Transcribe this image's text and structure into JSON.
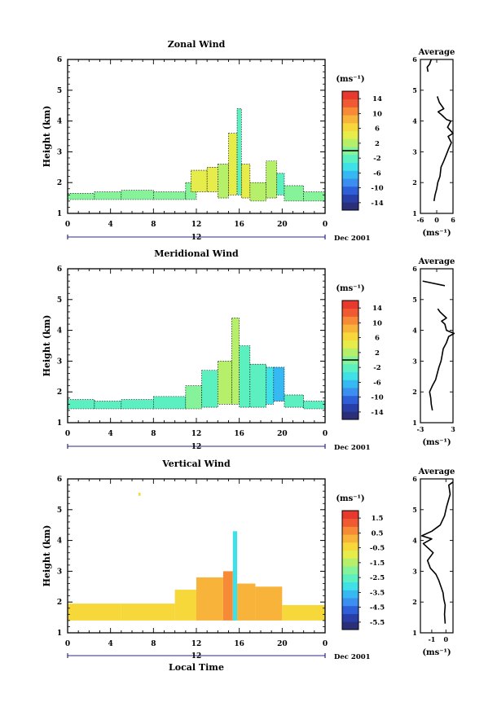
{
  "colorbar_unit_label": "(ms⁻¹)",
  "date_label": "Dec 2001",
  "day_label": "12",
  "x_tick_labels": [
    "0",
    "4",
    "8",
    "12",
    "16",
    "20",
    "0"
  ],
  "x_axis_label": "Local Time",
  "avg_title": "Average",
  "avg_xlabel": "(ms⁻¹)",
  "chart_data": [
    {
      "type": "heatmap",
      "title": "Zonal Wind",
      "ylabel": "Height (km)",
      "y_ticks": [
        "1",
        "2",
        "3",
        "4",
        "5",
        "6"
      ],
      "ylim": [
        1,
        6
      ],
      "xlim": [
        0,
        24
      ],
      "colorbar_ticks": [
        "14",
        "10",
        "6",
        "2",
        "-2",
        "-6",
        "-10",
        "-14"
      ],
      "colorbar_range": [
        -16,
        16
      ],
      "zero_contour": true,
      "cells": [
        {
          "t0": 0.0,
          "t1": 2.5,
          "h0": 1.45,
          "h1": 1.65,
          "v": 0.5
        },
        {
          "t0": 2.5,
          "t1": 5.0,
          "h0": 1.45,
          "h1": 1.7,
          "v": 0.5
        },
        {
          "t0": 5.0,
          "t1": 8.0,
          "h0": 1.45,
          "h1": 1.75,
          "v": 0.0
        },
        {
          "t0": 8.0,
          "t1": 11.0,
          "h0": 1.45,
          "h1": 1.7,
          "v": 0.5
        },
        {
          "t0": 11.0,
          "t1": 12.0,
          "h0": 1.45,
          "h1": 2.0,
          "v": 0.0
        },
        {
          "t0": 11.5,
          "t1": 13.0,
          "h0": 1.7,
          "h1": 2.4,
          "v": 3.5
        },
        {
          "t0": 13.0,
          "t1": 14.0,
          "h0": 1.7,
          "h1": 2.5,
          "v": 4.5
        },
        {
          "t0": 14.0,
          "t1": 15.0,
          "h0": 1.5,
          "h1": 2.6,
          "v": 2.0
        },
        {
          "t0": 15.0,
          "t1": 15.8,
          "h0": 1.6,
          "h1": 3.6,
          "v": 5.0
        },
        {
          "t0": 15.8,
          "t1": 16.2,
          "h0": 1.6,
          "h1": 4.4,
          "v": -1.5
        },
        {
          "t0": 16.2,
          "t1": 17.0,
          "h0": 1.5,
          "h1": 2.6,
          "v": 5.0
        },
        {
          "t0": 17.0,
          "t1": 18.5,
          "h0": 1.4,
          "h1": 2.0,
          "v": 1.5
        },
        {
          "t0": 18.5,
          "t1": 19.5,
          "h0": 1.5,
          "h1": 2.7,
          "v": 3.0
        },
        {
          "t0": 19.5,
          "t1": 20.2,
          "h0": 1.6,
          "h1": 2.3,
          "v": -3.0
        },
        {
          "t0": 20.2,
          "t1": 22.0,
          "h0": 1.4,
          "h1": 1.9,
          "v": 0.0
        },
        {
          "t0": 22.0,
          "t1": 24.0,
          "h0": 1.4,
          "h1": 1.7,
          "v": 0.5
        }
      ],
      "average_profile": {
        "xlim": [
          -6,
          6
        ],
        "x_ticks": [
          "-6",
          "0",
          "6"
        ],
        "y_ticks": [
          "1",
          "2",
          "3",
          "4",
          "5",
          "6"
        ],
        "segments": [
          [
            [
              -1,
              1.4
            ],
            [
              -0.6,
              1.6
            ],
            [
              0,
              1.8
            ],
            [
              0.4,
              2.0
            ],
            [
              1.2,
              2.2
            ],
            [
              1.6,
              2.5
            ],
            [
              2.6,
              2.7
            ],
            [
              3.5,
              2.9
            ],
            [
              4.4,
              3.1
            ],
            [
              5.4,
              3.3
            ],
            [
              4.2,
              3.5
            ],
            [
              6.0,
              3.6
            ],
            [
              4.0,
              3.8
            ],
            [
              5.2,
              4.0
            ],
            [
              3.6,
              4.05
            ],
            [
              1.8,
              4.2
            ],
            [
              0.5,
              4.3
            ],
            [
              2.6,
              4.4
            ],
            [
              1.0,
              4.6
            ],
            [
              0.2,
              4.8
            ]
          ],
          [
            [
              -3.2,
              5.6
            ],
            [
              -3.5,
              5.75
            ],
            [
              -2.6,
              5.85
            ],
            [
              -2.0,
              6.0
            ]
          ]
        ]
      }
    },
    {
      "type": "heatmap",
      "title": "Meridional Wind",
      "ylabel": "Height (km)",
      "y_ticks": [
        "1",
        "2",
        "3",
        "4",
        "5",
        "6"
      ],
      "ylim": [
        1,
        6
      ],
      "xlim": [
        0,
        24
      ],
      "colorbar_ticks": [
        "14",
        "10",
        "6",
        "2",
        "-2",
        "-6",
        "-10",
        "-14"
      ],
      "colorbar_range": [
        -16,
        16
      ],
      "zero_contour": true,
      "cells": [
        {
          "t0": 0.0,
          "t1": 2.5,
          "h0": 1.45,
          "h1": 1.75,
          "v": -1.5
        },
        {
          "t0": 2.5,
          "t1": 5.0,
          "h0": 1.45,
          "h1": 1.7,
          "v": -2.5
        },
        {
          "t0": 5.0,
          "t1": 8.0,
          "h0": 1.45,
          "h1": 1.75,
          "v": -2.0
        },
        {
          "t0": 8.0,
          "t1": 11.0,
          "h0": 1.45,
          "h1": 1.85,
          "v": -2.0
        },
        {
          "t0": 11.0,
          "t1": 12.5,
          "h0": 1.45,
          "h1": 2.2,
          "v": -1.0
        },
        {
          "t0": 12.5,
          "t1": 14.0,
          "h0": 1.5,
          "h1": 2.7,
          "v": -2.5
        },
        {
          "t0": 14.0,
          "t1": 15.3,
          "h0": 1.6,
          "h1": 3.0,
          "v": 1.5
        },
        {
          "t0": 15.3,
          "t1": 16.0,
          "h0": 1.6,
          "h1": 4.4,
          "v": 2.5
        },
        {
          "t0": 16.0,
          "t1": 17.0,
          "h0": 1.5,
          "h1": 3.5,
          "v": -1.5
        },
        {
          "t0": 17.0,
          "t1": 18.5,
          "h0": 1.5,
          "h1": 2.9,
          "v": -2.0
        },
        {
          "t0": 18.5,
          "t1": 19.2,
          "h0": 1.6,
          "h1": 2.8,
          "v": -3.5
        },
        {
          "t0": 19.2,
          "t1": 20.2,
          "h0": 1.7,
          "h1": 2.8,
          "v": -6.0
        },
        {
          "t0": 20.2,
          "t1": 22.0,
          "h0": 1.5,
          "h1": 1.9,
          "v": -2.0
        },
        {
          "t0": 22.0,
          "t1": 24.0,
          "h0": 1.45,
          "h1": 1.7,
          "v": -1.5
        }
      ],
      "average_profile": {
        "xlim": [
          -3,
          3
        ],
        "x_ticks": [
          "-3",
          "3"
        ],
        "y_ticks": [
          "1",
          "2",
          "3",
          "4",
          "5",
          "6"
        ],
        "segments": [
          [
            [
              -0.8,
              1.4
            ],
            [
              -1.0,
              1.6
            ],
            [
              -1.1,
              1.8
            ],
            [
              -1.3,
              2.0
            ],
            [
              -0.8,
              2.2
            ],
            [
              -0.2,
              2.4
            ],
            [
              0.1,
              2.6
            ],
            [
              0.4,
              2.8
            ],
            [
              0.8,
              3.0
            ],
            [
              1.0,
              3.2
            ],
            [
              1.2,
              3.4
            ],
            [
              1.8,
              3.6
            ],
            [
              2.2,
              3.8
            ],
            [
              3.2,
              3.9
            ],
            [
              1.8,
              4.0
            ],
            [
              1.5,
              4.2
            ],
            [
              0.9,
              4.3
            ],
            [
              1.8,
              4.4
            ],
            [
              0.6,
              4.6
            ],
            [
              0.2,
              4.7
            ]
          ],
          [
            [
              -2.6,
              5.6
            ],
            [
              1.5,
              5.45
            ]
          ]
        ]
      }
    },
    {
      "type": "heatmap",
      "title": "Vertical Wind",
      "ylabel": "Height (km)",
      "y_ticks": [
        "1",
        "2",
        "3",
        "4",
        "5",
        "6"
      ],
      "ylim": [
        1,
        6
      ],
      "xlim": [
        0,
        24
      ],
      "colorbar_ticks": [
        "1.5",
        "0.5",
        "-0.5",
        "-1.5",
        "-2.5",
        "-3.5",
        "-4.5",
        "-5.5"
      ],
      "colorbar_range": [
        -6,
        2
      ],
      "zero_contour": false,
      "cells": [
        {
          "t0": 0.0,
          "t1": 5.0,
          "h0": 1.4,
          "h1": 1.95,
          "v": -0.5
        },
        {
          "t0": 5.0,
          "t1": 10.0,
          "h0": 1.4,
          "h1": 1.95,
          "v": -0.5
        },
        {
          "t0": 10.0,
          "t1": 12.0,
          "h0": 1.4,
          "h1": 2.4,
          "v": -0.3
        },
        {
          "t0": 12.0,
          "t1": 14.5,
          "h0": 1.4,
          "h1": 2.8,
          "v": 0.2
        },
        {
          "t0": 14.5,
          "t1": 15.4,
          "h0": 1.4,
          "h1": 3.0,
          "v": 0.4
        },
        {
          "t0": 15.4,
          "t1": 15.8,
          "h0": 1.4,
          "h1": 4.3,
          "v": -3.0
        },
        {
          "t0": 15.8,
          "t1": 17.5,
          "h0": 1.4,
          "h1": 2.6,
          "v": 0.2
        },
        {
          "t0": 17.5,
          "t1": 20.0,
          "h0": 1.4,
          "h1": 2.5,
          "v": 0.0
        },
        {
          "t0": 20.0,
          "t1": 24.0,
          "h0": 1.4,
          "h1": 1.9,
          "v": -0.2
        },
        {
          "t0": 6.6,
          "t1": 6.8,
          "h0": 5.45,
          "h1": 5.55,
          "v": -0.4
        }
      ],
      "average_profile": {
        "xlim": [
          -1.8,
          0.5
        ],
        "x_ticks": [
          "-1",
          "0"
        ],
        "y_ticks": [
          "1",
          "2",
          "3",
          "4",
          "5",
          "6"
        ],
        "segments": [
          [
            [
              -0.05,
              1.3
            ],
            [
              -0.1,
              1.6
            ],
            [
              -0.05,
              1.9
            ],
            [
              -0.15,
              2.1
            ],
            [
              -0.2,
              2.3
            ],
            [
              -0.35,
              2.5
            ],
            [
              -0.5,
              2.7
            ],
            [
              -0.7,
              2.9
            ],
            [
              -1.1,
              3.1
            ],
            [
              -1.3,
              3.35
            ],
            [
              -0.9,
              3.6
            ],
            [
              -1.6,
              3.9
            ],
            [
              -1.0,
              4.05
            ],
            [
              -1.7,
              4.15
            ],
            [
              -1.0,
              4.3
            ],
            [
              -0.4,
              4.5
            ],
            [
              -0.1,
              4.8
            ],
            [
              0.05,
              5.1
            ],
            [
              0.3,
              5.5
            ],
            [
              0.2,
              5.8
            ],
            [
              0.5,
              5.9
            ]
          ]
        ]
      }
    }
  ]
}
